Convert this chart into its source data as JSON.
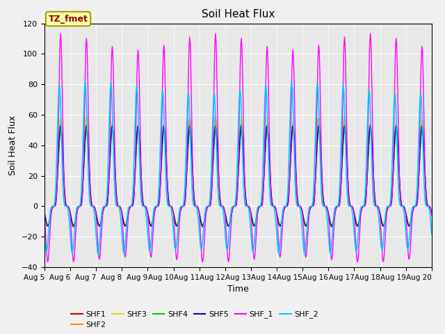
{
  "title": "Soil Heat Flux",
  "xlabel": "Time",
  "ylabel": "Soil Heat Flux",
  "ylim": [
    -40,
    120
  ],
  "yticks": [
    -40,
    -20,
    0,
    20,
    40,
    60,
    80,
    100,
    120
  ],
  "legend_entries": [
    "SHF1",
    "SHF2",
    "SHF3",
    "SHF4",
    "SHF5",
    "SHF_1",
    "SHF_2"
  ],
  "line_colors": [
    "#cc0000",
    "#ff8800",
    "#dddd00",
    "#00cc00",
    "#0000cc",
    "#ff00ff",
    "#00ccff"
  ],
  "line_widths": [
    1.0,
    1.0,
    1.0,
    1.0,
    1.0,
    1.0,
    1.2
  ],
  "background_color": "#e8e8e8",
  "grid_color": "#ffffff",
  "annotation_text": "TZ_fmet",
  "annotation_color": "#880000",
  "annotation_bg": "#ffffaa",
  "annotation_border": "#aa9900"
}
